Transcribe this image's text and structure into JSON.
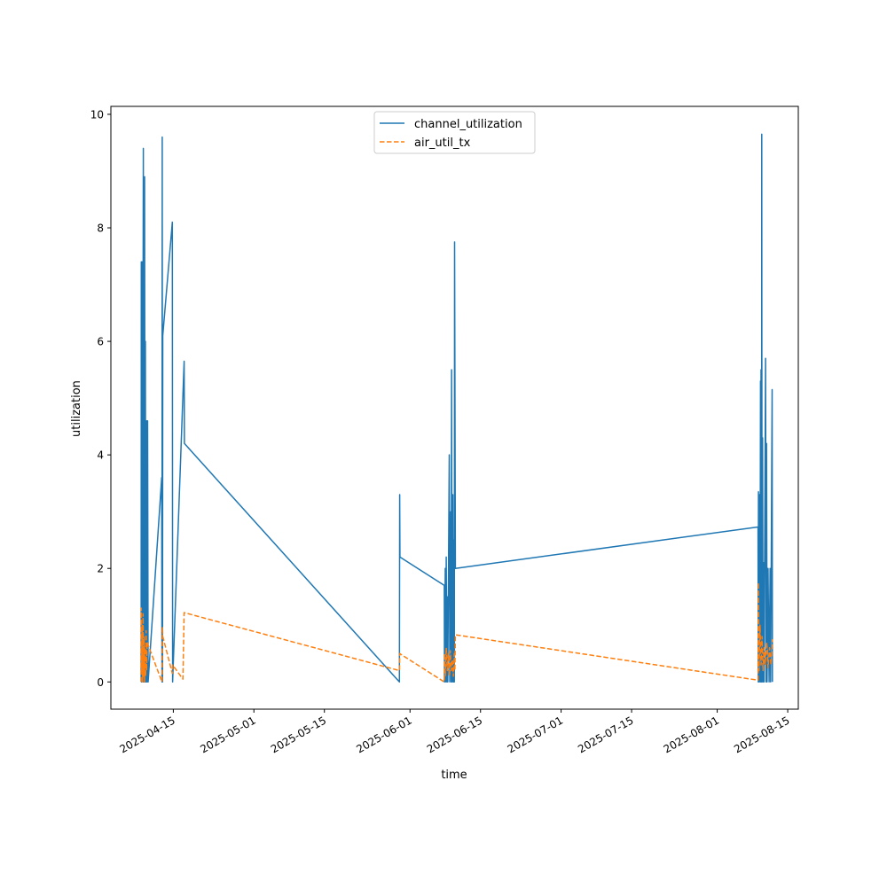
{
  "chart_data": {
    "type": "line",
    "title": "",
    "xlabel": "time",
    "ylabel": "utilization",
    "x_unit": "days since 2025-04-15",
    "xlim": [
      -12.4,
      124.1
    ],
    "ylim": [
      -0.48,
      10.14
    ],
    "grid": false,
    "legend_position": "top-center",
    "x_ticks": [
      {
        "value": 0,
        "label": "2025-04-15"
      },
      {
        "value": 16,
        "label": "2025-05-01"
      },
      {
        "value": 30,
        "label": "2025-05-15"
      },
      {
        "value": 47,
        "label": "2025-06-01"
      },
      {
        "value": 61,
        "label": "2025-06-15"
      },
      {
        "value": 77,
        "label": "2025-07-01"
      },
      {
        "value": 91,
        "label": "2025-07-15"
      },
      {
        "value": 108,
        "label": "2025-08-01"
      },
      {
        "value": 122,
        "label": "2025-08-15"
      }
    ],
    "y_ticks": [
      {
        "value": 0,
        "label": "0"
      },
      {
        "value": 2,
        "label": "2"
      },
      {
        "value": 4,
        "label": "4"
      },
      {
        "value": 6,
        "label": "6"
      },
      {
        "value": 8,
        "label": "8"
      },
      {
        "value": 10,
        "label": "10"
      }
    ],
    "series": [
      {
        "name": "channel_utilization",
        "color": "#1f77b4",
        "style": "solid",
        "points": [
          [
            -6.4,
            0
          ],
          [
            -6.35,
            7.4
          ],
          [
            -6.3,
            0
          ],
          [
            -6.2,
            7.4
          ],
          [
            -6.1,
            0
          ],
          [
            -6.0,
            6.5
          ],
          [
            -5.95,
            9.4
          ],
          [
            -5.9,
            0
          ],
          [
            -5.8,
            5
          ],
          [
            -5.75,
            0
          ],
          [
            -5.7,
            8.9
          ],
          [
            -5.6,
            0
          ],
          [
            -5.55,
            6
          ],
          [
            -5.5,
            0
          ],
          [
            -5.4,
            3
          ],
          [
            -5.35,
            0
          ],
          [
            -5.3,
            4.6
          ],
          [
            -5.2,
            0
          ],
          [
            -5.1,
            4.6
          ],
          [
            -5.0,
            0
          ],
          [
            -2.3,
            3.6
          ],
          [
            -2.25,
            0
          ],
          [
            -2.2,
            9.6
          ],
          [
            -2.15,
            0
          ],
          [
            -2.1,
            6.1
          ],
          [
            -0.2,
            8.1
          ],
          [
            -0.15,
            0
          ],
          [
            2.15,
            5.65
          ],
          [
            2.2,
            4.2
          ],
          [
            44.9,
            0
          ],
          [
            44.95,
            3.3
          ],
          [
            45.0,
            2.2
          ],
          [
            53.8,
            1.7
          ],
          [
            53.85,
            0
          ],
          [
            54.0,
            2.0
          ],
          [
            54.05,
            0
          ],
          [
            54.2,
            2.2
          ],
          [
            54.3,
            0
          ],
          [
            54.4,
            1.5
          ],
          [
            54.5,
            0
          ],
          [
            54.8,
            4.0
          ],
          [
            54.9,
            0
          ],
          [
            55.1,
            3.0
          ],
          [
            55.2,
            0
          ],
          [
            55.25,
            5.5
          ],
          [
            55.35,
            0
          ],
          [
            55.5,
            3.3
          ],
          [
            55.6,
            0
          ],
          [
            55.7,
            2.5
          ],
          [
            55.8,
            0
          ],
          [
            55.85,
            7.75
          ],
          [
            56.0,
            2.0
          ],
          [
            116.1,
            2.73
          ],
          [
            116.15,
            0
          ],
          [
            116.2,
            3.35
          ],
          [
            116.25,
            0
          ],
          [
            116.4,
            3.3
          ],
          [
            116.5,
            0
          ],
          [
            116.6,
            5.3
          ],
          [
            116.65,
            0
          ],
          [
            116.7,
            5.5
          ],
          [
            116.8,
            0
          ],
          [
            116.85,
            9.65
          ],
          [
            116.9,
            0
          ],
          [
            117.0,
            4.3
          ],
          [
            117.1,
            0
          ],
          [
            117.2,
            2.1
          ],
          [
            117.3,
            0
          ],
          [
            117.6,
            5.7
          ],
          [
            117.7,
            0
          ],
          [
            117.8,
            4.2
          ],
          [
            117.9,
            0
          ],
          [
            118.1,
            2.0
          ],
          [
            118.3,
            0
          ],
          [
            118.5,
            2.0
          ],
          [
            118.6,
            0
          ],
          [
            118.9,
            5.15
          ],
          [
            118.95,
            0
          ]
        ]
      },
      {
        "name": "air_util_tx",
        "color": "#ff7f0e",
        "style": "dashed",
        "points": [
          [
            -6.4,
            0
          ],
          [
            -6.35,
            1.3
          ],
          [
            -6.3,
            0.2
          ],
          [
            -6.2,
            1.0
          ],
          [
            -6.1,
            0
          ],
          [
            -6.0,
            1.2
          ],
          [
            -5.9,
            0.1
          ],
          [
            -5.8,
            0.8
          ],
          [
            -5.7,
            0
          ],
          [
            -5.6,
            0.6
          ],
          [
            -5.5,
            0.1
          ],
          [
            -5.4,
            0.9
          ],
          [
            -5.3,
            0.2
          ],
          [
            -5.2,
            0.7
          ],
          [
            -5.0,
            0.65
          ],
          [
            -2.25,
            0
          ],
          [
            -2.15,
            0.97
          ],
          [
            -2.1,
            0.8
          ],
          [
            -0.2,
            0.15
          ],
          [
            -0.15,
            0.3
          ],
          [
            1.9,
            0.05
          ],
          [
            2.15,
            1.22
          ],
          [
            44.9,
            0.2
          ],
          [
            44.95,
            0.5
          ],
          [
            53.8,
            0
          ],
          [
            53.9,
            0.5
          ],
          [
            54.0,
            0.1
          ],
          [
            54.2,
            0.6
          ],
          [
            54.4,
            0.2
          ],
          [
            54.6,
            0.5
          ],
          [
            54.8,
            0.1
          ],
          [
            55.0,
            0.55
          ],
          [
            55.2,
            0.2
          ],
          [
            55.4,
            0.4
          ],
          [
            55.6,
            0.1
          ],
          [
            55.8,
            0.5
          ],
          [
            55.9,
            0.2
          ],
          [
            56.0,
            0.83
          ],
          [
            116.1,
            0.03
          ],
          [
            116.2,
            1.75
          ],
          [
            116.3,
            0.2
          ],
          [
            116.5,
            1.0
          ],
          [
            116.7,
            0.3
          ],
          [
            116.9,
            0.8
          ],
          [
            117.1,
            0.2
          ],
          [
            117.3,
            0.6
          ],
          [
            117.5,
            0.3
          ],
          [
            117.8,
            0.7
          ],
          [
            118.1,
            0.25
          ],
          [
            118.4,
            0.6
          ],
          [
            118.7,
            0.3
          ],
          [
            118.95,
            0.75
          ]
        ]
      }
    ]
  }
}
